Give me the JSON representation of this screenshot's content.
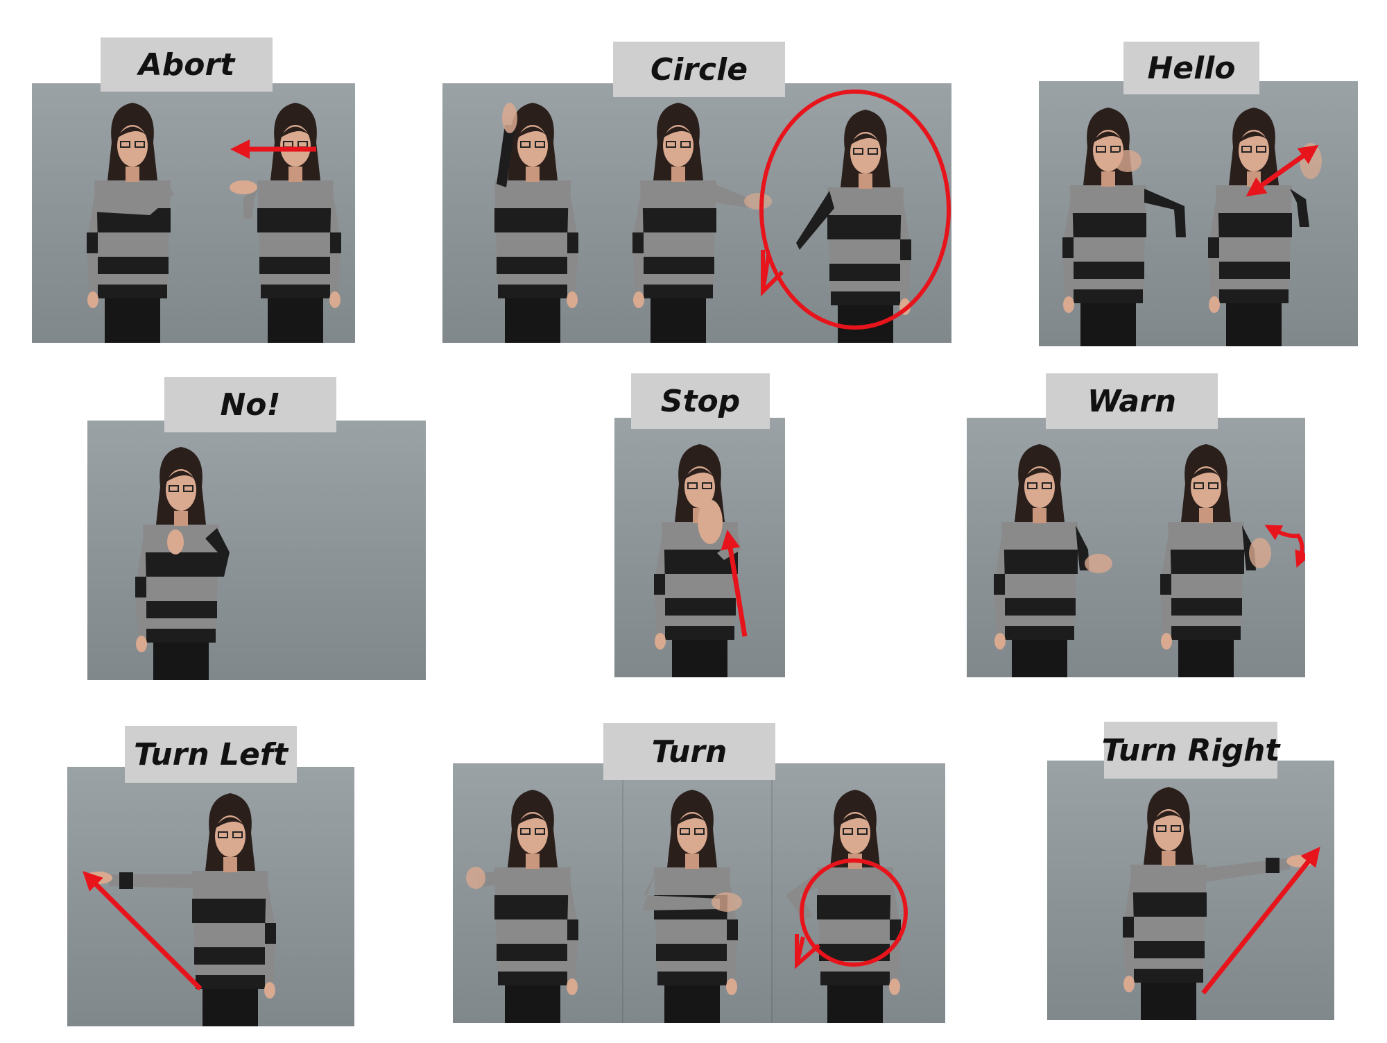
{
  "gestures": [
    {
      "label": "Abort"
    },
    {
      "label": "Circle"
    },
    {
      "label": "Hello"
    },
    {
      "label": "No!"
    },
    {
      "label": "Stop"
    },
    {
      "label": "Warn"
    },
    {
      "label": "Turn Left"
    },
    {
      "label": "Turn"
    },
    {
      "label": "Turn Right"
    }
  ],
  "colors": {
    "background": "#ffffff",
    "wall": "#8d9599",
    "label_bg": "#cfcfcf",
    "label_text": "#111111",
    "arrow": "#e8141c",
    "sweater_light": "#8a8a8a",
    "sweater_dark": "#1d1d1d",
    "skin": "#d9a990",
    "hair": "#2a1f1b"
  }
}
